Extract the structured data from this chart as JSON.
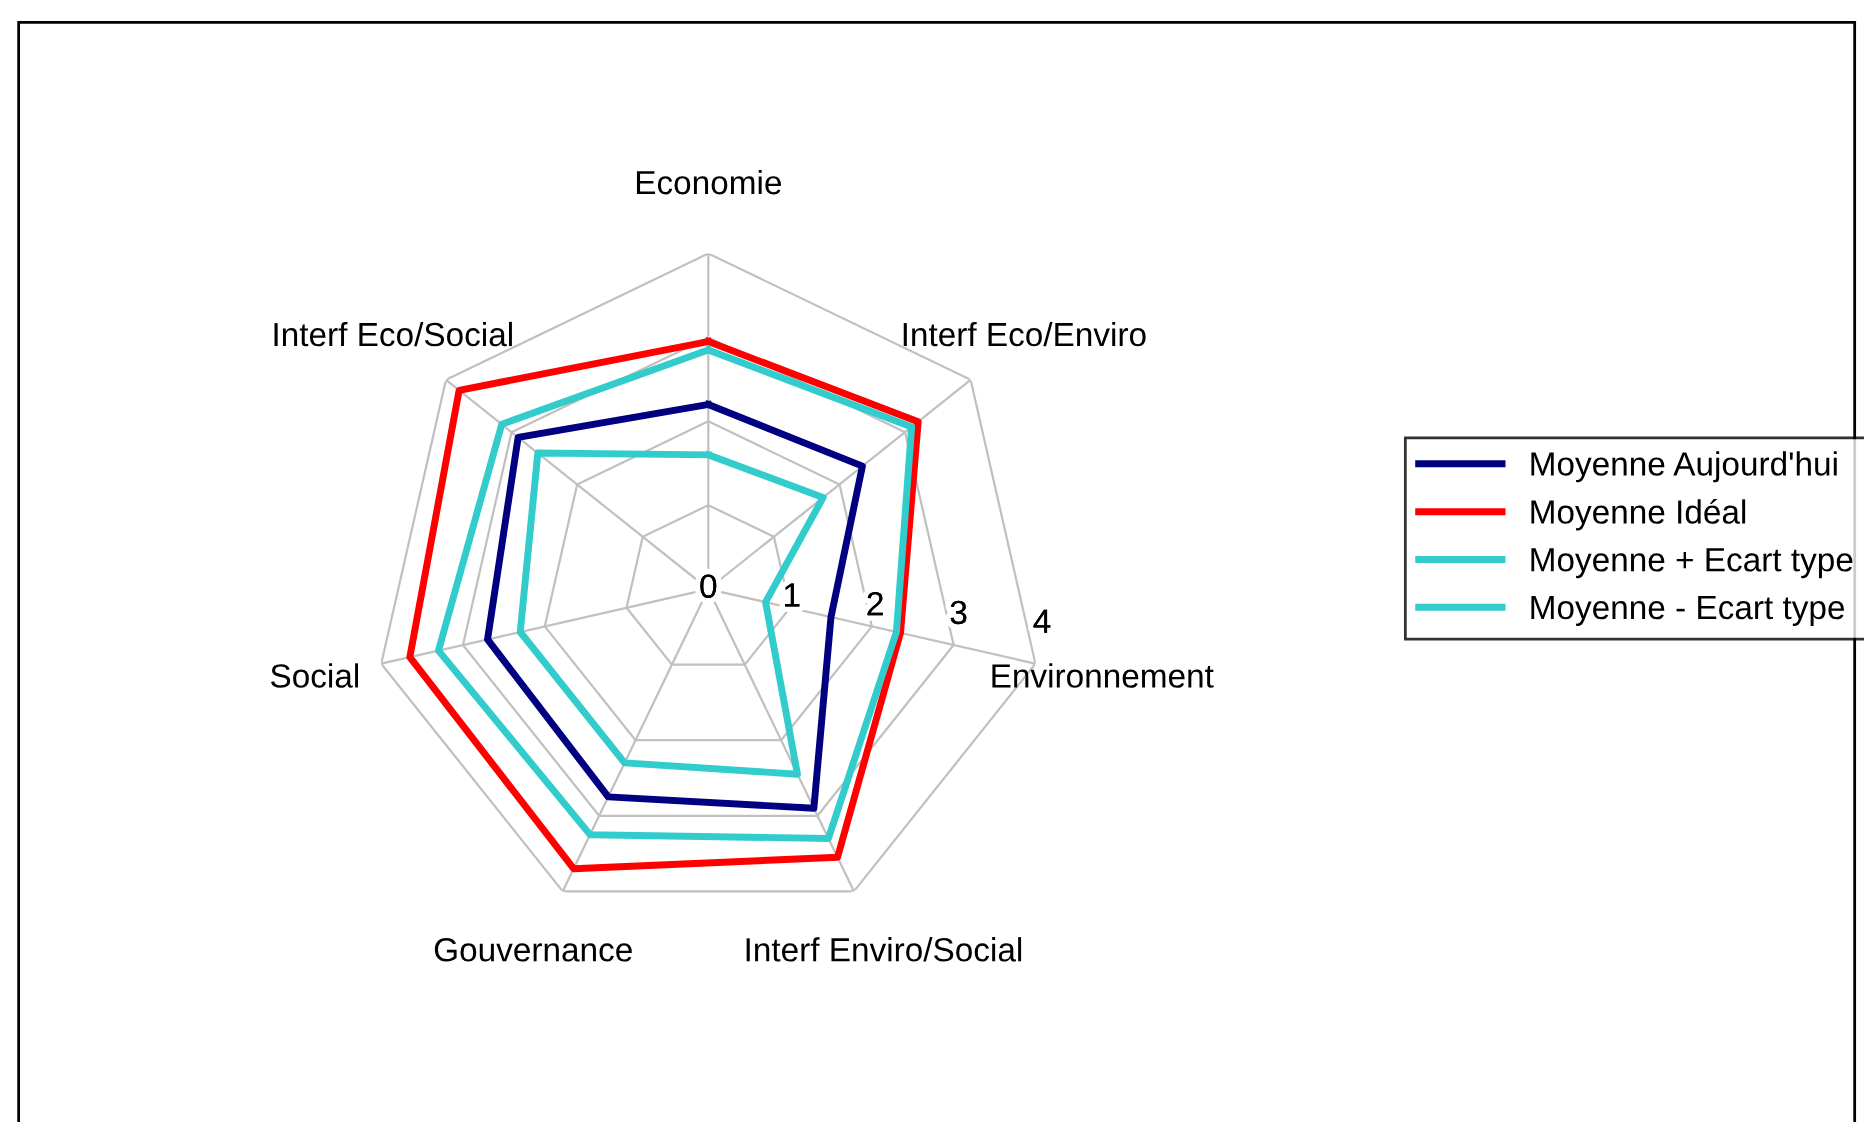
{
  "chart_data": {
    "type": "radar",
    "categories": [
      "Economie",
      "Interf Eco/Enviro",
      "Environnement",
      "Interf Enviro/Social",
      "Gouvernance",
      "Social",
      "Interf Eco/Social"
    ],
    "series": [
      {
        "name": "Moyenne Aujourd'hui",
        "color": "#000080",
        "values": [
          2.2,
          2.35,
          1.5,
          2.9,
          2.75,
          2.7,
          2.9
        ]
      },
      {
        "name": "Moyenne Idéal",
        "color": "#ff0000",
        "values": [
          2.95,
          3.2,
          2.35,
          3.55,
          3.7,
          3.65,
          3.8
        ]
      },
      {
        "name": "Moyenne + Ecart type",
        "color": "#33cccc",
        "values": [
          2.85,
          3.1,
          2.3,
          3.3,
          3.25,
          3.3,
          3.15
        ]
      },
      {
        "name": "Moyenne - Ecart type",
        "color": "#33cccc",
        "values": [
          1.6,
          1.75,
          0.7,
          2.45,
          2.3,
          2.3,
          2.6
        ]
      }
    ],
    "ylim": [
      0,
      4
    ],
    "yticks": [
      0,
      1,
      2,
      3,
      4
    ],
    "grid": true,
    "legend": "right",
    "marker": "none",
    "line_style": "solid"
  }
}
